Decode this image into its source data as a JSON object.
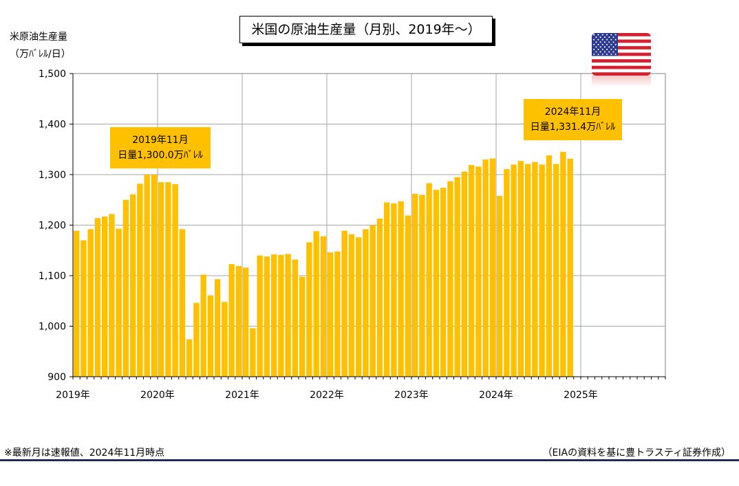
{
  "title": "米国の原油生産量（月別、2019年～）",
  "y_unit": {
    "line1": "米原油生産量",
    "line2": "（万ﾊﾞﾚﾙ/日）"
  },
  "annotations": [
    {
      "line1": "2019年11月",
      "line2": "日量1,300.0万ﾊﾞﾚﾙ"
    },
    {
      "line1": "2024年11月",
      "line2": "日量1,331.4万ﾊﾞﾚﾙ"
    }
  ],
  "footnote": "※最新月は速報値、2024年11月時点",
  "source": "（EIAの資料を基に豊トラスティ証券作成）",
  "icons": {
    "flag": "us-flag-icon"
  },
  "colors": {
    "bar": "#ffc000",
    "grid": "#a6a6a6",
    "rule": "#1f2d5a"
  },
  "chart_data": {
    "type": "bar",
    "title": "米国の原油生産量（月別、2019年～）",
    "ylabel": "米原油生産量（万ﾊﾞﾚﾙ/日）",
    "xlabel": "",
    "ylim": [
      900,
      1500
    ],
    "yticks": [
      "900",
      "1,000",
      "1,100",
      "1,200",
      "1,300",
      "1,400",
      "1,500"
    ],
    "year_labels": [
      "2019年",
      "2020年",
      "2021年",
      "2022年",
      "2023年",
      "2024年",
      "2025年"
    ],
    "months_total": 84,
    "grid": true,
    "series": [
      {
        "values": [
          1189,
          1170,
          1192,
          1214,
          1217,
          1222,
          1193,
          1250,
          1261,
          1282,
          1300,
          1300,
          1285,
          1285,
          1281,
          1192,
          974,
          1046,
          1102,
          1061,
          1093,
          1048,
          1123,
          1119,
          1116,
          996,
          1140,
          1138,
          1142,
          1141,
          1143,
          1132,
          1098,
          1166,
          1188,
          1178,
          1146,
          1148,
          1189,
          1182,
          1176,
          1192,
          1200,
          1213,
          1245,
          1243,
          1247,
          1219,
          1262,
          1260,
          1283,
          1270,
          1274,
          1287,
          1295,
          1306,
          1319,
          1316,
          1330,
          1332,
          1258,
          1311,
          1320,
          1327,
          1321,
          1325,
          1320,
          1338,
          1321,
          1345,
          1331.4
        ]
      }
    ]
  }
}
